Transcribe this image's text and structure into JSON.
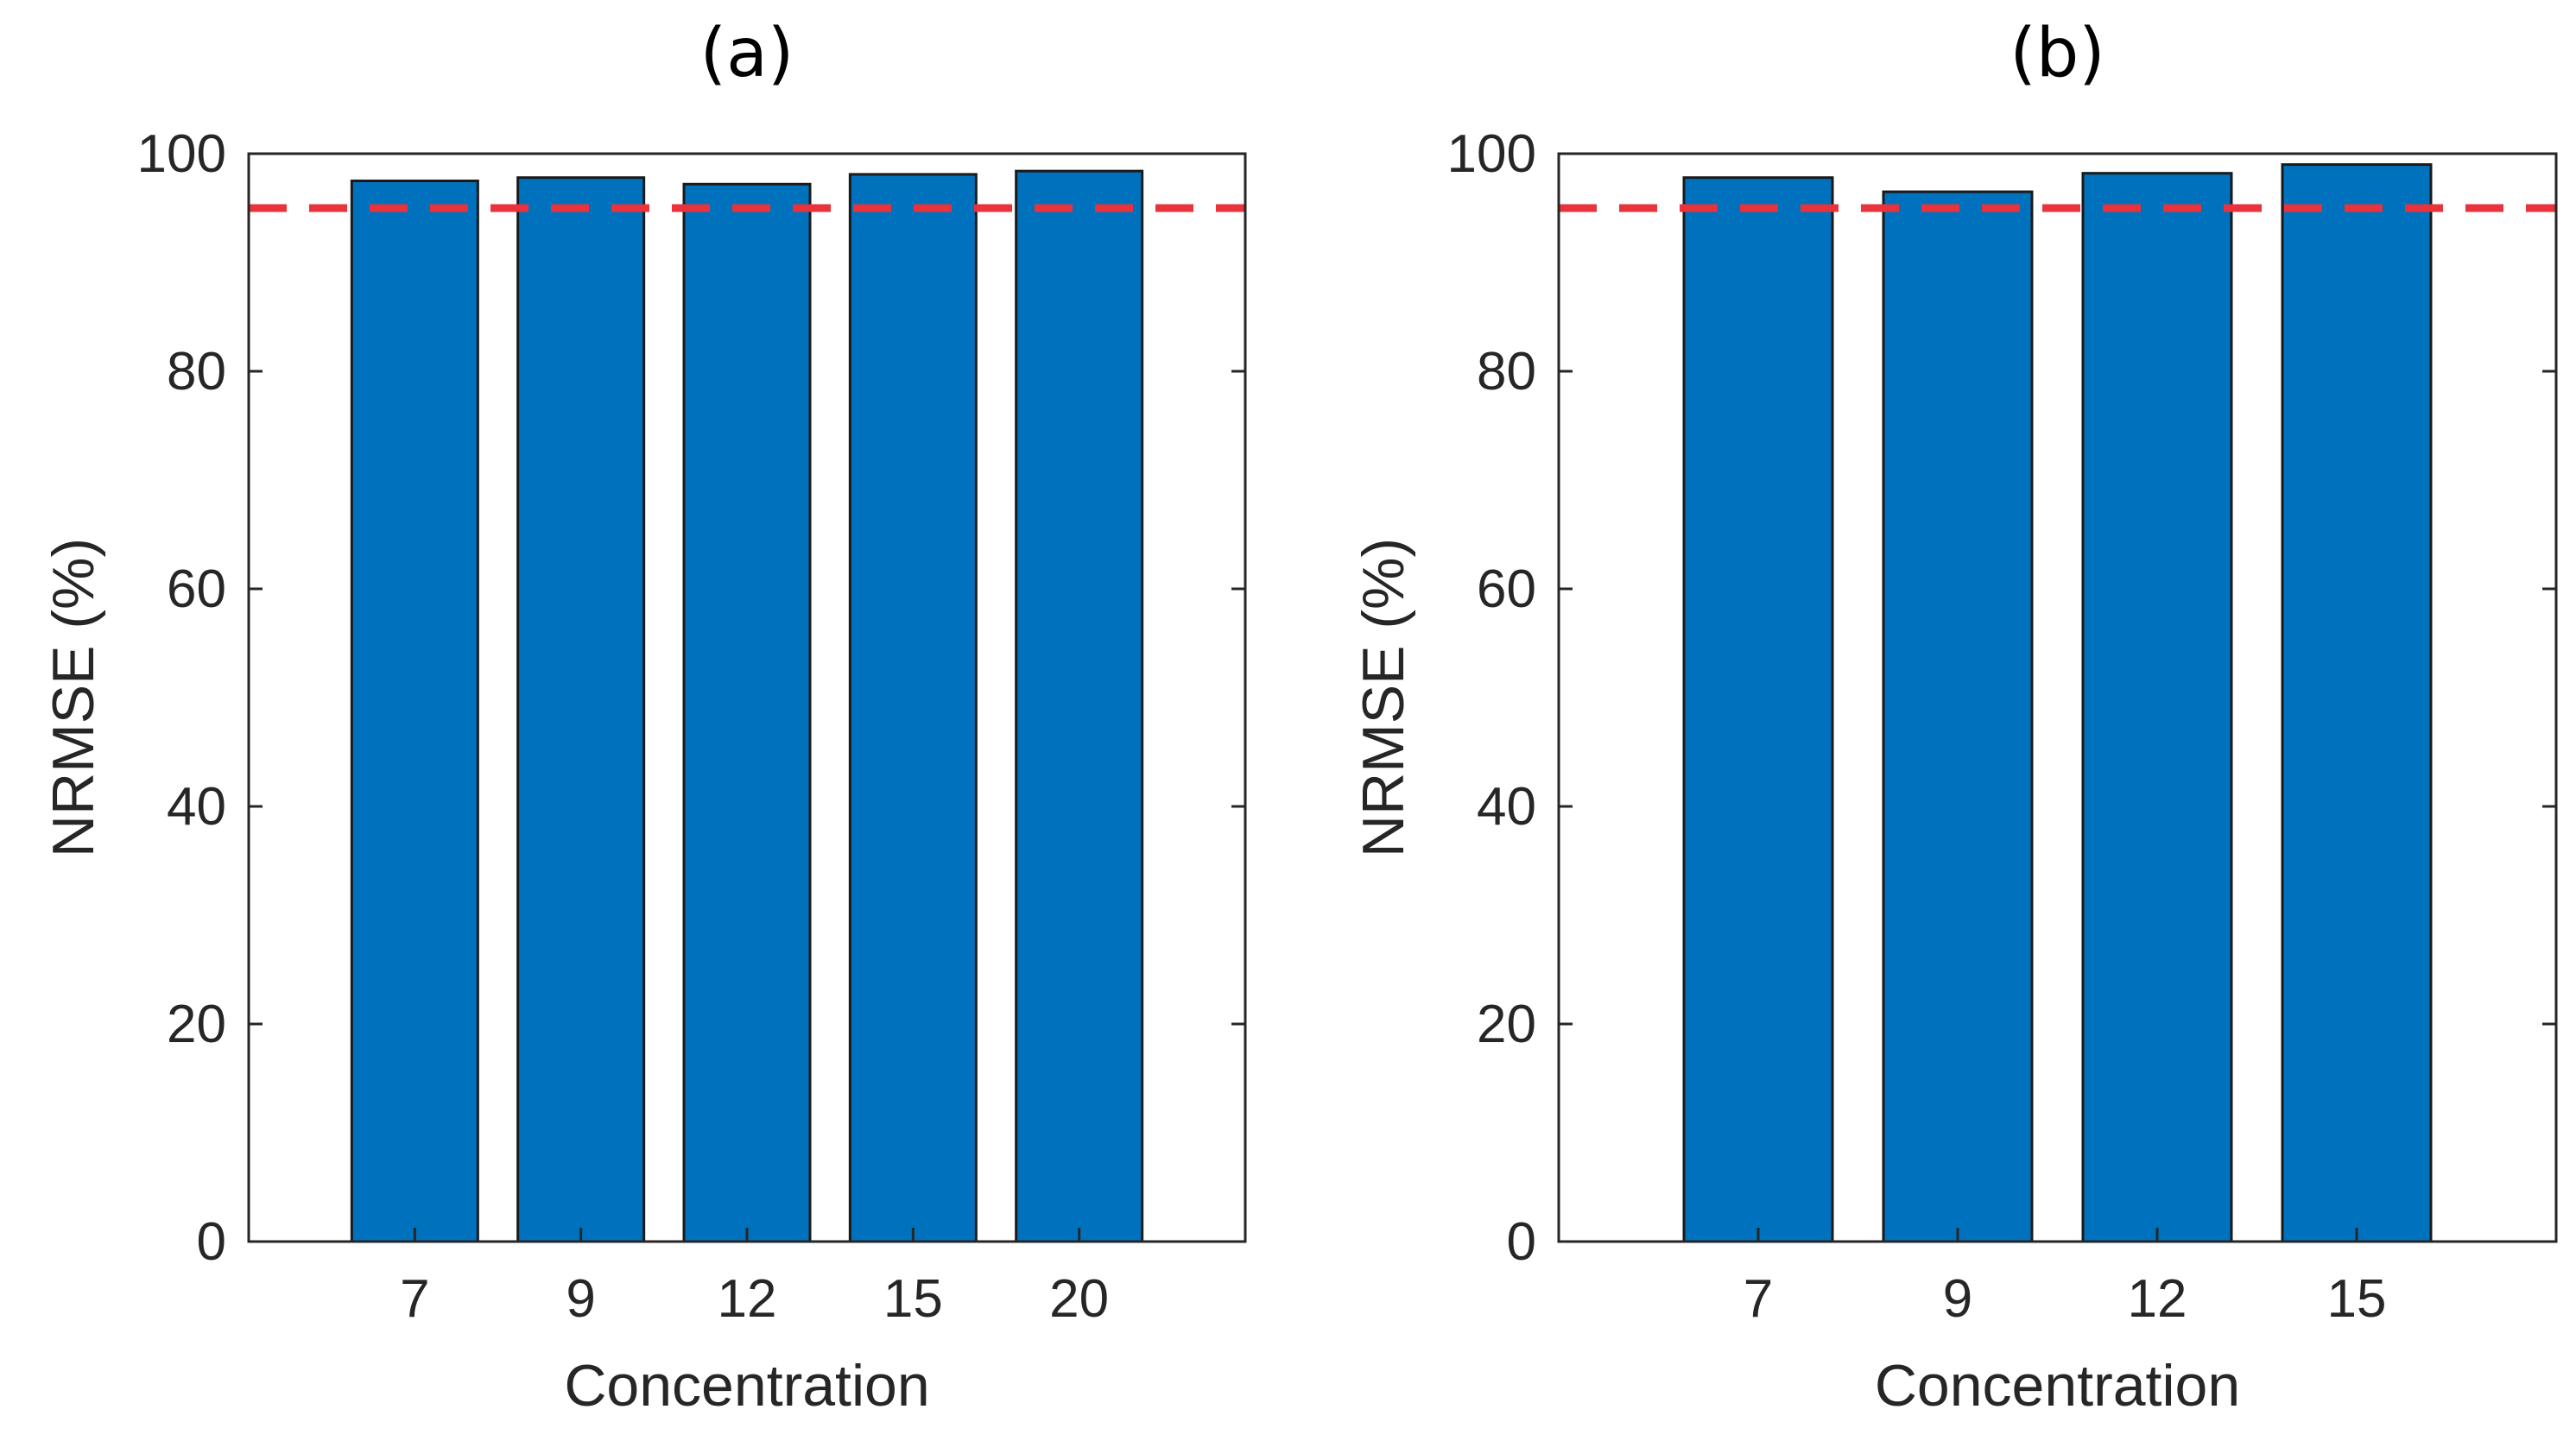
{
  "chart_data": [
    {
      "type": "bar",
      "title": "(a)",
      "xlabel": "Concentration",
      "ylabel": "NRMSE (%)",
      "categories": [
        "7",
        "9",
        "12",
        "15",
        "20"
      ],
      "values": [
        97.5,
        97.8,
        97.2,
        98.1,
        98.4
      ],
      "ylim": [
        0,
        100
      ],
      "yticks": [
        0,
        20,
        40,
        60,
        80,
        100
      ],
      "reference_line": 95,
      "bar_color": "#0072BD",
      "reference_color": "#E8323C",
      "grid": false
    },
    {
      "type": "bar",
      "title": "(b)",
      "xlabel": "Concentration",
      "ylabel": "NRMSE (%)",
      "categories": [
        "7",
        "9",
        "12",
        "15"
      ],
      "values": [
        97.8,
        96.5,
        98.2,
        99.0
      ],
      "ylim": [
        0,
        100
      ],
      "yticks": [
        0,
        20,
        40,
        60,
        80,
        100
      ],
      "reference_line": 95,
      "bar_color": "#0072BD",
      "reference_color": "#E8323C",
      "grid": false
    }
  ]
}
